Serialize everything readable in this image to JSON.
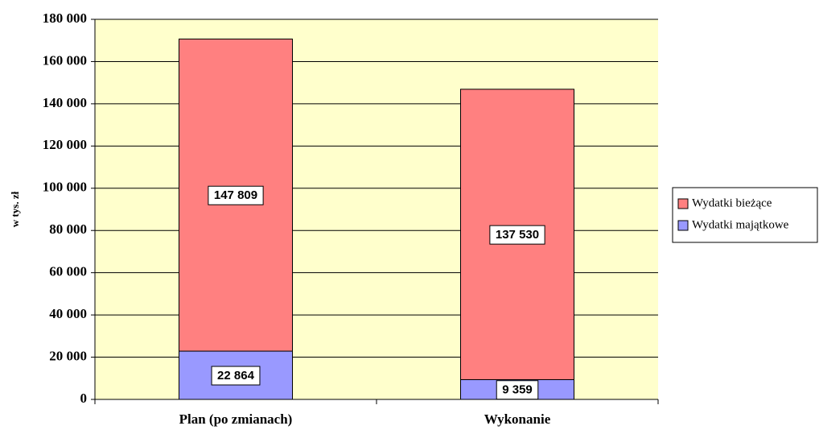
{
  "chart_data": {
    "type": "stacked_bar",
    "y_label": "w tys. zł",
    "categories": [
      "Plan (po zmianach)",
      "Wykonanie"
    ],
    "series": [
      {
        "name": "Wydatki majątkowe",
        "color": "#9999ff",
        "values": [
          22864,
          9359
        ],
        "value_labels": [
          "22 864",
          "9 359"
        ]
      },
      {
        "name": "Wydatki bieżące",
        "color": "#ff8080",
        "values": [
          147809,
          137530
        ],
        "value_labels": [
          "147 809",
          "137 530"
        ]
      }
    ],
    "ylim": [
      0,
      180000
    ],
    "yticks": [
      {
        "value": 0,
        "label": "0"
      },
      {
        "value": 20000,
        "label": "20 000"
      },
      {
        "value": 40000,
        "label": "40 000"
      },
      {
        "value": 60000,
        "label": "60 000"
      },
      {
        "value": 80000,
        "label": "80 000"
      },
      {
        "value": 100000,
        "label": "100 000"
      },
      {
        "value": 120000,
        "label": "120 000"
      },
      {
        "value": 140000,
        "label": "140 000"
      },
      {
        "value": 160000,
        "label": "160 000"
      },
      {
        "value": 180000,
        "label": "180 000"
      }
    ],
    "grid": true,
    "legend": "right",
    "plot_background": "#ffffcc"
  }
}
